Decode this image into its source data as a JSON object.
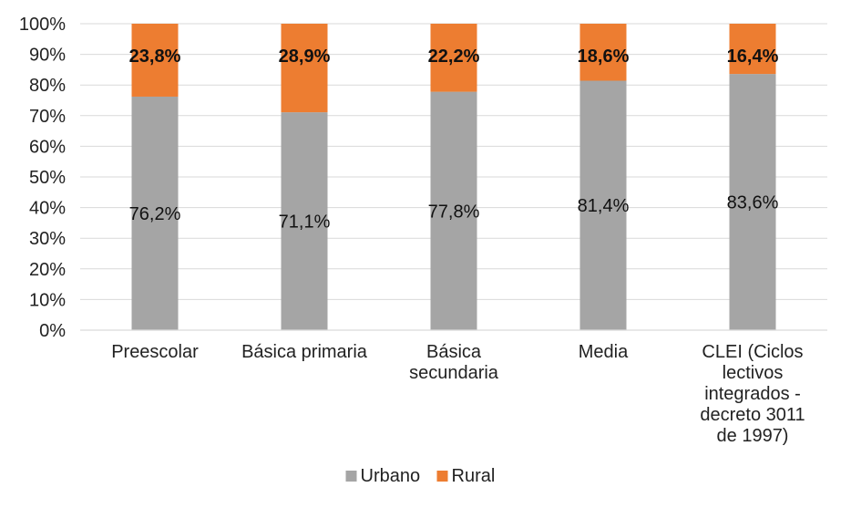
{
  "chart_data": {
    "type": "bar",
    "stacked": true,
    "categories": [
      [
        "Preescolar"
      ],
      [
        "Básica primaria"
      ],
      [
        "Básica",
        "secundaria"
      ],
      [
        "Media"
      ],
      [
        "CLEI (Ciclos",
        "lectivos",
        "integrados -",
        "decreto 3011",
        "de 1997)"
      ]
    ],
    "series": [
      {
        "name": "Urbano",
        "color": "#A5A5A5",
        "values": [
          76.2,
          71.1,
          77.8,
          81.4,
          83.6
        ],
        "labels": [
          "76,2%",
          "71,1%",
          "77,8%",
          "81,4%",
          "83,6%"
        ]
      },
      {
        "name": "Rural",
        "color": "#ED7D31",
        "values": [
          23.8,
          28.9,
          22.2,
          18.6,
          16.4
        ],
        "labels": [
          "23,8%",
          "28,9%",
          "22,2%",
          "18,6%",
          "16,4%"
        ]
      }
    ],
    "ylim": [
      0,
      100
    ],
    "yticks": [
      "0%",
      "10%",
      "20%",
      "30%",
      "40%",
      "50%",
      "60%",
      "70%",
      "80%",
      "90%",
      "100%"
    ],
    "grid": true,
    "legend": "bottom"
  }
}
